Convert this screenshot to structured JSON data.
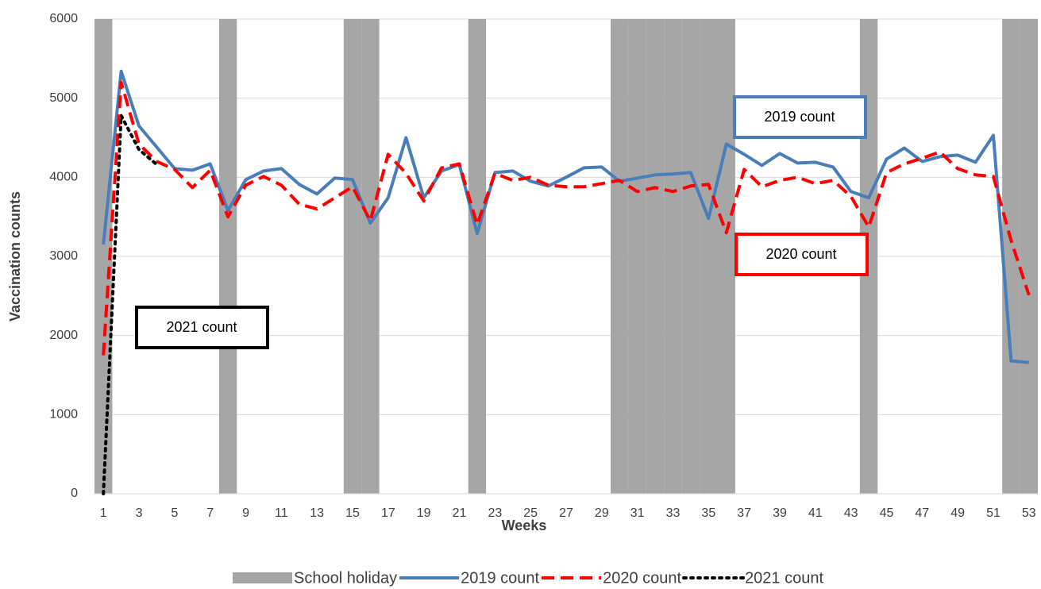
{
  "chart_data": {
    "type": "line",
    "x_label": "Weeks",
    "y_label": "Vaccination counts",
    "x": [
      1,
      2,
      3,
      4,
      5,
      6,
      7,
      8,
      9,
      10,
      11,
      12,
      13,
      14,
      15,
      16,
      17,
      18,
      19,
      20,
      21,
      22,
      23,
      24,
      25,
      26,
      27,
      28,
      29,
      30,
      31,
      32,
      33,
      34,
      35,
      36,
      37,
      38,
      39,
      40,
      41,
      42,
      43,
      44,
      45,
      46,
      47,
      48,
      49,
      50,
      51,
      52,
      53
    ],
    "xlim": [
      0.5,
      53.5
    ],
    "xticks": [
      1,
      3,
      5,
      7,
      9,
      11,
      13,
      15,
      17,
      19,
      21,
      23,
      25,
      27,
      29,
      31,
      33,
      35,
      37,
      39,
      41,
      43,
      45,
      47,
      49,
      51,
      53
    ],
    "ylim": [
      0,
      6000
    ],
    "yticks": [
      0,
      1000,
      2000,
      3000,
      4000,
      5000,
      6000
    ],
    "grid": true,
    "legend": "bottom",
    "series": [
      {
        "name": "School holiday",
        "type": "bar",
        "color": "#a6a6a6",
        "values": [
          6000,
          null,
          null,
          null,
          null,
          null,
          null,
          6000,
          null,
          null,
          null,
          null,
          null,
          null,
          6000,
          6000,
          null,
          null,
          null,
          null,
          null,
          6000,
          null,
          null,
          null,
          null,
          null,
          null,
          null,
          6000,
          6000,
          6000,
          6000,
          6000,
          6000,
          6000,
          null,
          null,
          null,
          null,
          null,
          null,
          null,
          6000,
          null,
          null,
          null,
          null,
          null,
          null,
          null,
          6000,
          6000
        ]
      },
      {
        "name": "2019 count",
        "type": "line",
        "color": "#4a7ebb",
        "dash": "solid",
        "values": [
          3150,
          5340,
          4650,
          4380,
          4110,
          4090,
          4170,
          3580,
          3970,
          4080,
          4110,
          3910,
          3790,
          3990,
          3970,
          3420,
          3740,
          4500,
          3740,
          4080,
          4160,
          3290,
          4060,
          4080,
          3950,
          3890,
          4000,
          4120,
          4130,
          3950,
          3990,
          4030,
          4040,
          4060,
          3480,
          4420,
          4290,
          4150,
          4300,
          4180,
          4190,
          4130,
          3820,
          3740,
          4230,
          4370,
          4200,
          4260,
          4280,
          4190,
          4530,
          1680,
          1660
        ]
      },
      {
        "name": "2020 count",
        "type": "line",
        "color": "#ff0000",
        "dash": "dashed",
        "values": [
          1750,
          5200,
          4420,
          4200,
          4100,
          3870,
          4090,
          3500,
          3900,
          4010,
          3900,
          3660,
          3600,
          3740,
          3880,
          3450,
          4290,
          4050,
          3700,
          4120,
          4170,
          3400,
          4050,
          3960,
          4000,
          3900,
          3880,
          3880,
          3920,
          3960,
          3820,
          3870,
          3820,
          3890,
          3910,
          3300,
          4100,
          3880,
          3960,
          4000,
          3920,
          3960,
          3760,
          3370,
          4060,
          4170,
          4240,
          4320,
          4110,
          4030,
          4010,
          3200,
          2510
        ]
      },
      {
        "name": "2021 count",
        "type": "line",
        "color": "#000000",
        "dash": "dotted",
        "values": [
          0,
          4780,
          4350,
          4160,
          null,
          null,
          null,
          null,
          null,
          null,
          null,
          null,
          null,
          null,
          null,
          null,
          null,
          null,
          null,
          null,
          null,
          null,
          null,
          null,
          null,
          null,
          null,
          null,
          null,
          null,
          null,
          null,
          null,
          null,
          null,
          null,
          null,
          null,
          null,
          null,
          null,
          null,
          null,
          null,
          null,
          null,
          null,
          null,
          null,
          null,
          null,
          null,
          null
        ]
      }
    ],
    "annotations": [
      {
        "text": "2019 count",
        "color": "#4a7ebb"
      },
      {
        "text": "2020 count",
        "color": "#ff0000"
      },
      {
        "text": "2021 count",
        "color": "#000000"
      }
    ]
  }
}
